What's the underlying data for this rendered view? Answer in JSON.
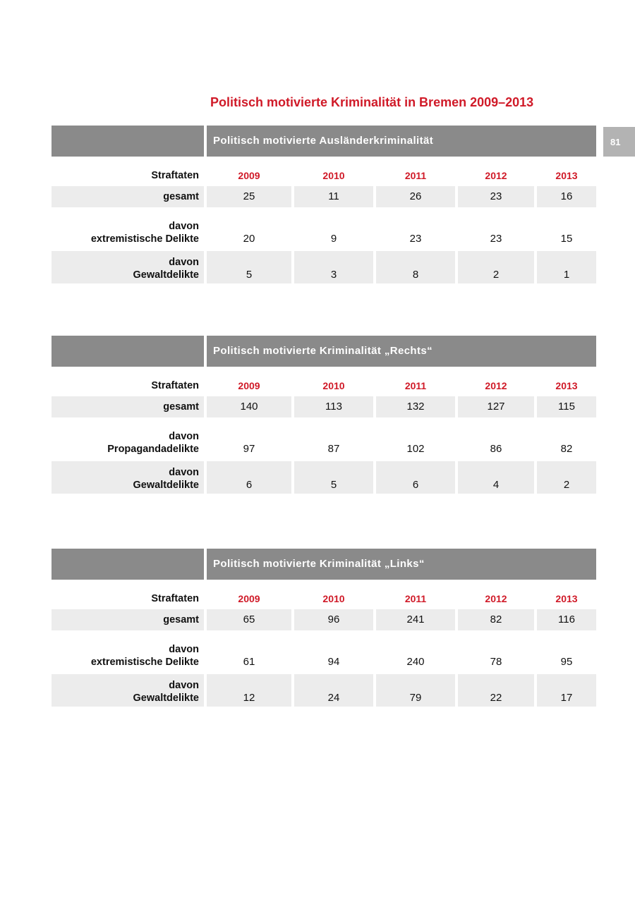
{
  "page": {
    "title": "Politisch motivierte Kriminalität in Bremen 2009–2013",
    "page_number": "81",
    "colors": {
      "accent_red": "#d01a28",
      "header_gray": "#8a8a8a",
      "row_gray": "#ececec",
      "badge_gray": "#b3b3b3"
    }
  },
  "tables": [
    {
      "id": "auslaenderkriminalitaet",
      "header_title": "Politisch motivierte Ausländerkriminalität",
      "row_header_label": "Straftaten",
      "years": [
        "2009",
        "2010",
        "2011",
        "2012",
        "2013"
      ],
      "rows": [
        {
          "label_lines": [
            "gesamt"
          ],
          "values": [
            "25",
            "11",
            "26",
            "23",
            "16"
          ],
          "shaded": true
        },
        {
          "label_lines": [
            "davon",
            "extremistische Delikte"
          ],
          "values": [
            "20",
            "9",
            "23",
            "23",
            "15"
          ],
          "shaded": false
        },
        {
          "label_lines": [
            "davon",
            "Gewaltdelikte"
          ],
          "values": [
            "5",
            "3",
            "8",
            "2",
            "1"
          ],
          "shaded": true
        }
      ]
    },
    {
      "id": "rechts",
      "header_title": "Politisch motivierte Kriminalität „Rechts“",
      "row_header_label": "Straftaten",
      "years": [
        "2009",
        "2010",
        "2011",
        "2012",
        "2013"
      ],
      "rows": [
        {
          "label_lines": [
            "gesamt"
          ],
          "values": [
            "140",
            "113",
            "132",
            "127",
            "115"
          ],
          "shaded": true
        },
        {
          "label_lines": [
            "davon",
            "Propagandadelikte"
          ],
          "values": [
            "97",
            "87",
            "102",
            "86",
            "82"
          ],
          "shaded": false
        },
        {
          "label_lines": [
            "davon",
            "Gewaltdelikte"
          ],
          "values": [
            "6",
            "5",
            "6",
            "4",
            "2"
          ],
          "shaded": true
        }
      ]
    },
    {
      "id": "links",
      "header_title": "Politisch motivierte Kriminalität „Links“",
      "row_header_label": "Straftaten",
      "years": [
        "2009",
        "2010",
        "2011",
        "2012",
        "2013"
      ],
      "rows": [
        {
          "label_lines": [
            "gesamt"
          ],
          "values": [
            "65",
            "96",
            "241",
            "82",
            "116"
          ],
          "shaded": true
        },
        {
          "label_lines": [
            "davon",
            "extremistische Delikte"
          ],
          "values": [
            "61",
            "94",
            "240",
            "78",
            "95"
          ],
          "shaded": false
        },
        {
          "label_lines": [
            "davon",
            "Gewaltdelikte"
          ],
          "values": [
            "12",
            "24",
            "79",
            "22",
            "17"
          ],
          "shaded": true
        }
      ]
    }
  ]
}
